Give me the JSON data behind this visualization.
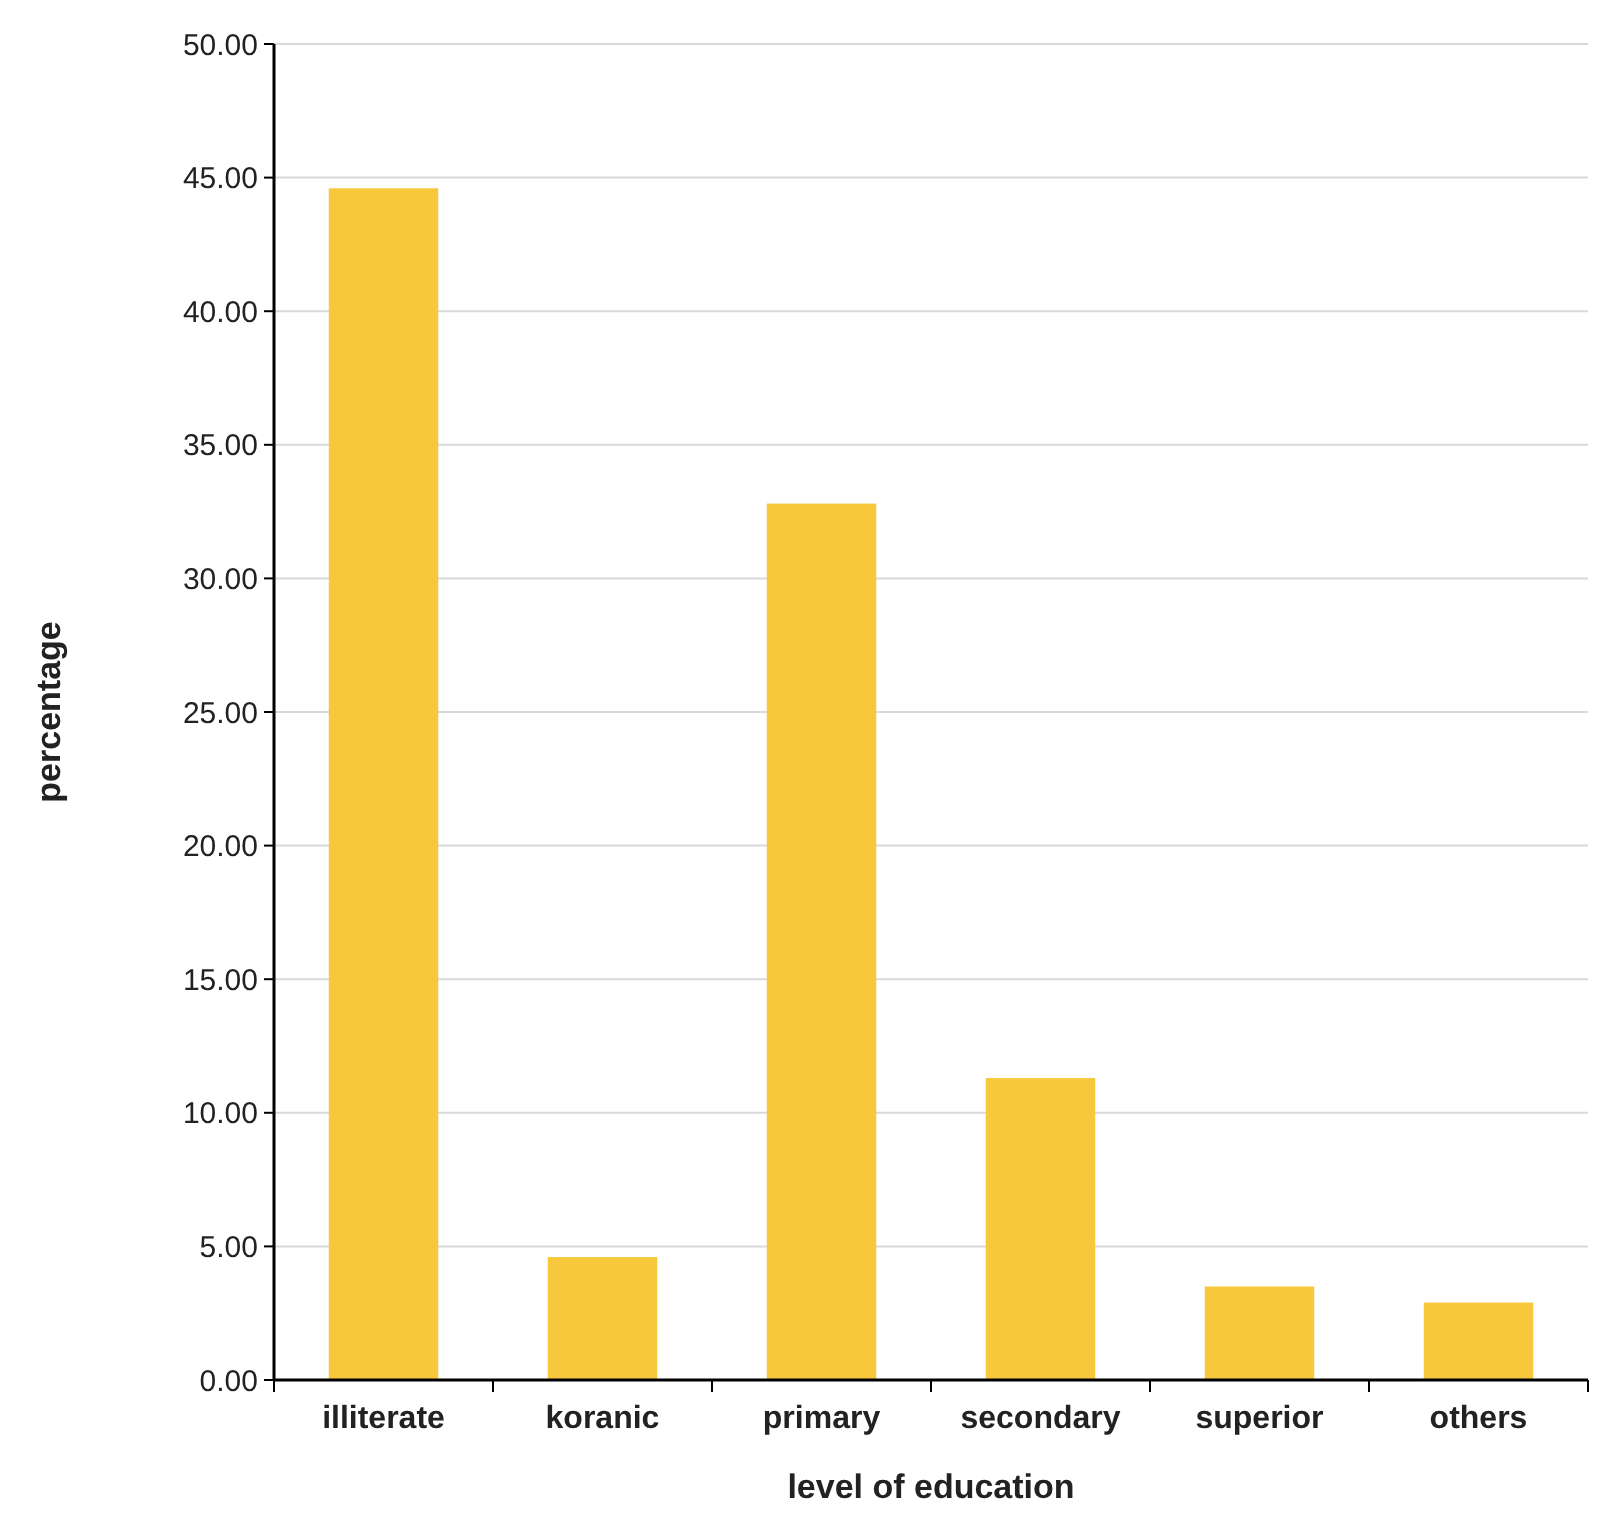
{
  "chart_data": {
    "type": "bar",
    "xlabel": "level of education",
    "ylabel": "percentage",
    "categories": [
      "illiterate",
      "koranic",
      "primary",
      "secondary",
      "superior",
      "others"
    ],
    "values": [
      44.6,
      4.6,
      32.8,
      11.3,
      3.5,
      2.9
    ],
    "color": "#f7c83c",
    "ylim": [
      0,
      50
    ],
    "yticks": [
      {
        "value": 0,
        "label": "0.00"
      },
      {
        "value": 5,
        "label": "5.00"
      },
      {
        "value": 10,
        "label": "10.00"
      },
      {
        "value": 15,
        "label": "15.00"
      },
      {
        "value": 20,
        "label": "20.00"
      },
      {
        "value": 25,
        "label": "25.00"
      },
      {
        "value": 30,
        "label": "30.00"
      },
      {
        "value": 35,
        "label": "35.00"
      },
      {
        "value": 40,
        "label": "40.00"
      },
      {
        "value": 45,
        "label": "45.00"
      },
      {
        "value": 50,
        "label": "50.00"
      }
    ],
    "grid": "y"
  }
}
